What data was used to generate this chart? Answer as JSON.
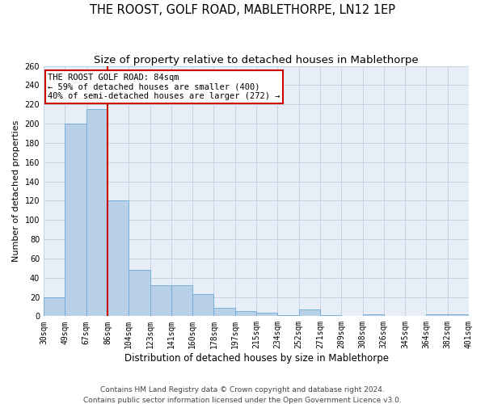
{
  "title": "THE ROOST, GOLF ROAD, MABLETHORPE, LN12 1EP",
  "subtitle": "Size of property relative to detached houses in Mablethorpe",
  "xlabel": "Distribution of detached houses by size in Mablethorpe",
  "ylabel": "Number of detached properties",
  "bar_values": [
    20,
    200,
    215,
    120,
    48,
    32,
    32,
    23,
    9,
    5,
    4,
    1,
    7,
    1,
    0,
    2,
    0,
    0,
    2,
    2
  ],
  "categories": [
    "30sqm",
    "49sqm",
    "67sqm",
    "86sqm",
    "104sqm",
    "123sqm",
    "141sqm",
    "160sqm",
    "178sqm",
    "197sqm",
    "215sqm",
    "234sqm",
    "252sqm",
    "271sqm",
    "289sqm",
    "308sqm",
    "326sqm",
    "345sqm",
    "364sqm",
    "382sqm",
    "401sqm"
  ],
  "bar_color": "#b8d0e8",
  "bar_edge_color": "#6aaad4",
  "vline_color": "#cc0000",
  "annotation_box_text": "THE ROOST GOLF ROAD: 84sqm\n← 59% of detached houses are smaller (400)\n40% of semi-detached houses are larger (272) →",
  "annotation_box_color": "#cc0000",
  "ylim": [
    0,
    260
  ],
  "yticks": [
    0,
    20,
    40,
    60,
    80,
    100,
    120,
    140,
    160,
    180,
    200,
    220,
    240,
    260
  ],
  "grid_color": "#c8d4e4",
  "background_color": "#e8eef8",
  "footer_line1": "Contains HM Land Registry data © Crown copyright and database right 2024.",
  "footer_line2": "Contains public sector information licensed under the Open Government Licence v3.0.",
  "title_fontsize": 10.5,
  "subtitle_fontsize": 9.5,
  "xlabel_fontsize": 8.5,
  "ylabel_fontsize": 8,
  "tick_fontsize": 7,
  "annotation_fontsize": 7.5,
  "footer_fontsize": 6.5
}
